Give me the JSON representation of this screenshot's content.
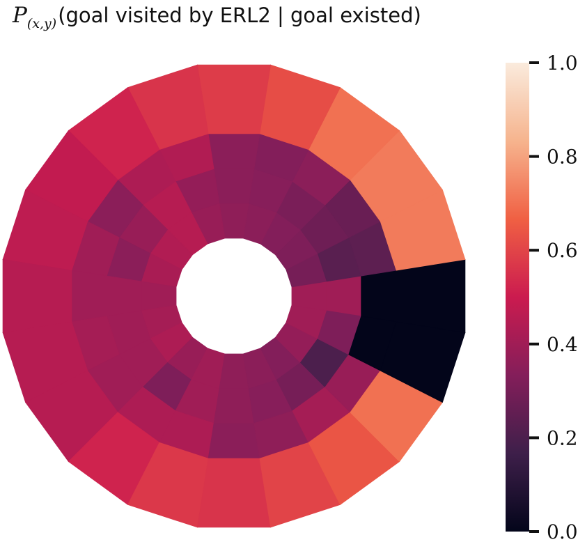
{
  "title": {
    "symbol": "P",
    "subscript": "(x,y)",
    "text": "(goal visited by ERL2 | goal existed)"
  },
  "chart_data": {
    "type": "heatmap",
    "layout": "polar-annulus",
    "rings": 4,
    "sectors": 20,
    "start_angle_deg": -9,
    "counterclockwise": true,
    "ring_order": "inner-to-outer",
    "values": [
      [
        0.4,
        0.3,
        0.32,
        0.33,
        0.35,
        0.36,
        0.38,
        0.45,
        0.44,
        0.42,
        0.4,
        0.41,
        0.43,
        0.38,
        0.4,
        0.36,
        0.35,
        0.33,
        0.37,
        0.4
      ],
      [
        0.4,
        0.23,
        0.28,
        0.31,
        0.34,
        0.35,
        0.37,
        0.45,
        0.38,
        0.35,
        0.4,
        0.4,
        0.4,
        0.32,
        0.4,
        0.36,
        0.34,
        0.3,
        0.2,
        0.32
      ],
      [
        0.0,
        0.24,
        0.27,
        0.35,
        0.33,
        0.35,
        0.44,
        0.43,
        0.35,
        0.4,
        0.4,
        0.41,
        0.4,
        0.43,
        0.43,
        0.35,
        0.36,
        0.41,
        0.38,
        0.0
      ],
      [
        0.0,
        0.72,
        0.72,
        0.7,
        0.62,
        0.58,
        0.56,
        0.52,
        0.48,
        0.47,
        0.45,
        0.45,
        0.45,
        0.52,
        0.57,
        0.56,
        0.6,
        0.64,
        0.7,
        0.0
      ]
    ],
    "colorbar": {
      "ticks": [
        0.0,
        0.2,
        0.4,
        0.6,
        0.8,
        1.0
      ],
      "tick_labels": [
        "0.0",
        "0.2",
        "0.4",
        "0.6",
        "0.8",
        "1.0"
      ],
      "vmin": 0.0,
      "vmax": 1.0,
      "colormap": "rocket",
      "stops": [
        "#03051a",
        "#3e1f4a",
        "#841e5a",
        "#cb1b4f",
        "#f06043",
        "#f6b48e",
        "#faebdd"
      ]
    }
  }
}
